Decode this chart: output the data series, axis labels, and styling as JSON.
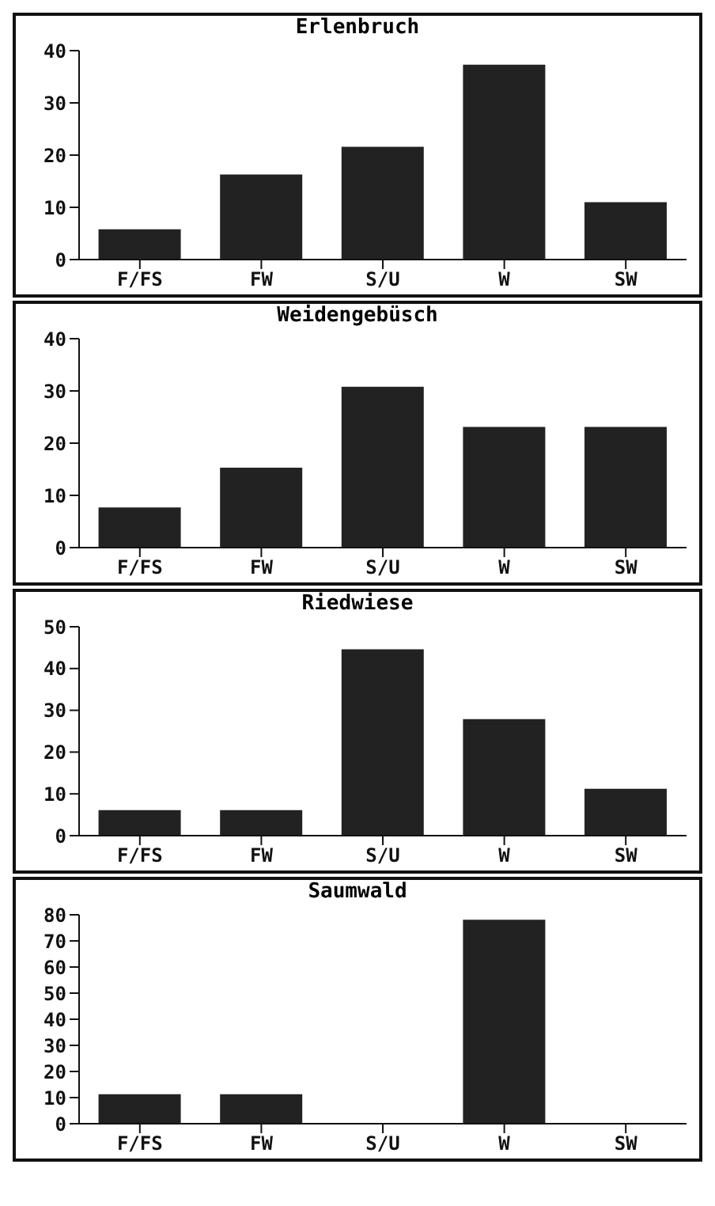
{
  "chart_data": [
    {
      "type": "bar",
      "title": "Erlenbruch",
      "categories": [
        "F/FS",
        "FW",
        "S/U",
        "W",
        "SW"
      ],
      "values": [
        5.8,
        16.3,
        21.6,
        37.3,
        11.0
      ],
      "color": "#222222",
      "ylim": [
        0,
        40
      ],
      "yticks": [
        0,
        10,
        20,
        30,
        40
      ],
      "grid": false,
      "legend": false
    },
    {
      "type": "bar",
      "title": "Weidengebüsch",
      "categories": [
        "F/FS",
        "FW",
        "S/U",
        "W",
        "SW"
      ],
      "values": [
        7.7,
        15.3,
        30.8,
        23.1,
        23.1
      ],
      "color": "#222222",
      "ylim": [
        0,
        40
      ],
      "yticks": [
        0,
        10,
        20,
        30,
        40
      ],
      "grid": false,
      "legend": false
    },
    {
      "type": "bar",
      "title": "Riedwiese",
      "categories": [
        "F/FS",
        "FW",
        "S/U",
        "W",
        "SW"
      ],
      "values": [
        6.1,
        6.1,
        44.6,
        27.9,
        11.2
      ],
      "color": "#222222",
      "ylim": [
        0,
        50
      ],
      "yticks": [
        0,
        10,
        20,
        30,
        40,
        50
      ],
      "grid": false,
      "legend": false
    },
    {
      "type": "bar",
      "title": "Saumwald",
      "categories": [
        "F/FS",
        "FW",
        "S/U",
        "W",
        "SW"
      ],
      "values": [
        11.3,
        11.3,
        0,
        78.1,
        0
      ],
      "color": "#222222",
      "ylim": [
        0,
        80
      ],
      "yticks": [
        0,
        10,
        20,
        30,
        40,
        50,
        60,
        70,
        80
      ],
      "grid": false,
      "legend": false
    }
  ]
}
